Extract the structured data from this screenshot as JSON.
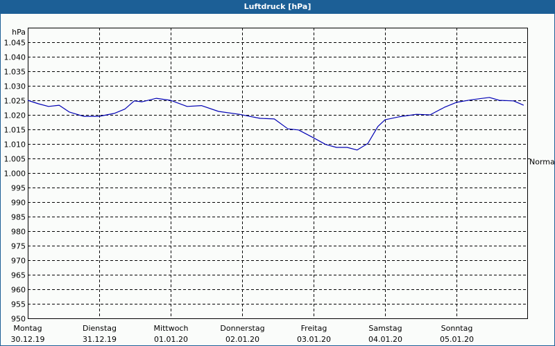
{
  "window": {
    "title": "Luftdruck [hPa]"
  },
  "chart_data": {
    "type": "line",
    "title": "Luftdruck [hPa]",
    "xlabel": "",
    "ylabel": "hPa",
    "ylim": [
      950,
      1045
    ],
    "yticks": [
      950,
      955,
      960,
      965,
      970,
      975,
      980,
      985,
      990,
      995,
      1000,
      1005,
      1010,
      1015,
      1020,
      1025,
      1030,
      1035,
      1040,
      1045
    ],
    "ytick_labels": [
      "950",
      "955",
      "960",
      "965",
      "970",
      "975",
      "980",
      "985",
      "990",
      "995",
      "1.000",
      "1.005",
      "1.010",
      "1.015",
      "1.020",
      "1.025",
      "1.030",
      "1.035",
      "1.040",
      "1.045"
    ],
    "grid": true,
    "grid_style": "dashed",
    "categories": [
      {
        "day": "Montag",
        "date": "30.12.19"
      },
      {
        "day": "Dienstag",
        "date": "31.12.19"
      },
      {
        "day": "Mittwoch",
        "date": "01.01.20"
      },
      {
        "day": "Donnerstag",
        "date": "02.01.20"
      },
      {
        "day": "Freitag",
        "date": "03.01.20"
      },
      {
        "day": "Samstag",
        "date": "04.01.20"
      },
      {
        "day": "Sonntag",
        "date": "05.01.20"
      }
    ],
    "reference_line": {
      "label": "Normal",
      "value": 1005
    },
    "series": [
      {
        "name": "Luftdruck",
        "color": "#0000b4",
        "x_days": [
          0.0,
          0.15,
          0.29,
          0.44,
          0.58,
          0.78,
          1.0,
          1.21,
          1.36,
          1.49,
          1.6,
          1.8,
          2.0,
          2.23,
          2.43,
          2.67,
          2.96,
          3.25,
          3.45,
          3.64,
          3.79,
          4.0,
          4.17,
          4.32,
          4.47,
          4.61,
          4.76,
          4.9,
          5.0,
          5.19,
          5.44,
          5.63,
          5.83,
          6.0,
          6.21,
          6.46,
          6.6,
          6.8,
          6.94
        ],
        "values": [
          1025.0,
          1023.8,
          1022.9,
          1023.3,
          1021.0,
          1019.5,
          1019.5,
          1020.5,
          1022.0,
          1024.8,
          1024.5,
          1025.7,
          1025.0,
          1022.9,
          1023.2,
          1021.2,
          1020.2,
          1018.8,
          1018.6,
          1015.2,
          1014.8,
          1012.1,
          1009.8,
          1008.8,
          1008.8,
          1007.9,
          1010.2,
          1016.0,
          1018.3,
          1019.3,
          1020.2,
          1020.0,
          1022.6,
          1024.3,
          1025.2,
          1026.0,
          1025.0,
          1024.8,
          1023.3
        ]
      }
    ],
    "legend": "none"
  },
  "colors": {
    "titlebar": "#1c5f96",
    "background": "#fafcfa",
    "line": "#0000b4",
    "grid": "#000000"
  }
}
